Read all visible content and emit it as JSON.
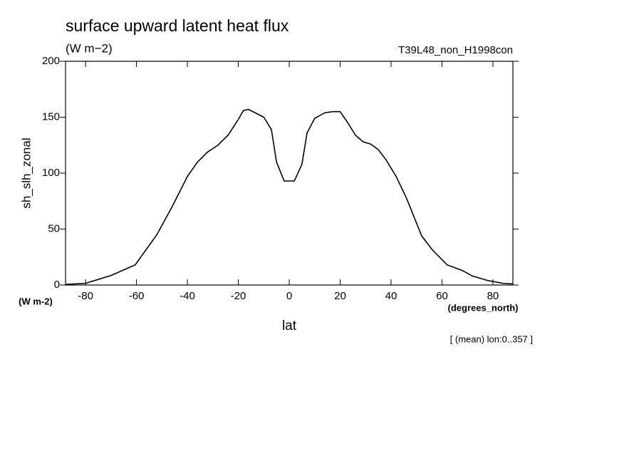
{
  "chart_data": {
    "type": "line",
    "title": "surface upward latent heat flux",
    "subtitle": "(W m−2)",
    "run_label": "T39L48_non_H1998con",
    "y_label": "sh_slh_zonal",
    "y_unit": "(W m-2)",
    "x_label": "lat",
    "x_unit": "(degrees_north)",
    "note": "[ (mean) lon:0..357 ]",
    "x": [
      -87.86,
      -80,
      -70,
      -60.5,
      -52,
      -46,
      -40,
      -36,
      -32,
      -28,
      -24,
      -20,
      -18,
      -16,
      -10,
      -7,
      -5,
      -2,
      2,
      5,
      7,
      10,
      14,
      17,
      20,
      23,
      26,
      29,
      32,
      35,
      38,
      42,
      46,
      52,
      56,
      62,
      68,
      72,
      78,
      84,
      87.86
    ],
    "series": [
      {
        "name": "sh_slh_zonal",
        "color": "#000000",
        "values": [
          0.5,
          1.5,
          8.5,
          18,
          45,
          70,
          97,
          110,
          119,
          125,
          134,
          148,
          156,
          157,
          150,
          139,
          110,
          93,
          93,
          108,
          136,
          149,
          154,
          155,
          155,
          145,
          134,
          128,
          126,
          121,
          112,
          97,
          78,
          44,
          32,
          18,
          13,
          8,
          4,
          1.5,
          1
        ]
      }
    ],
    "xlim": [
      -87.86,
      87.86
    ],
    "xticks": [
      -80,
      -60,
      -40,
      -20,
      0,
      20,
      40,
      60,
      80
    ],
    "ylim": [
      0,
      200
    ],
    "yticks": [
      0,
      50,
      100,
      150,
      200
    ],
    "grid": false
  }
}
